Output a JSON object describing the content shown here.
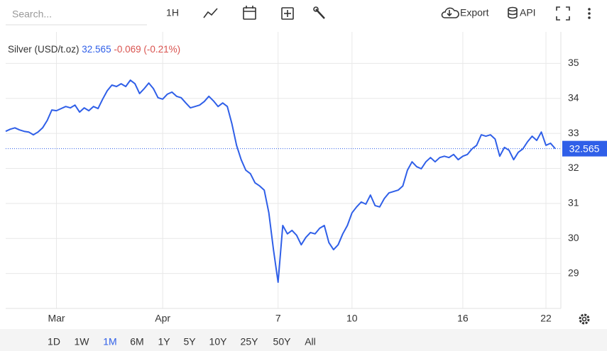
{
  "toolbar": {
    "search_placeholder": "Search...",
    "interval": "1H",
    "export": "Export",
    "api": "API"
  },
  "chart_data": {
    "type": "line",
    "title": "Silver (USD/t.oz)",
    "change": -0.069,
    "change_percent": {
      "value": -0.21,
      "label": "(-0.21%)"
    },
    "categories": [
      null,
      null,
      null,
      null,
      null,
      null,
      null,
      null,
      null,
      null,
      null,
      "Mar",
      null,
      null,
      null,
      null,
      null,
      null,
      null,
      null,
      null,
      null,
      null,
      null,
      null,
      null,
      null,
      null,
      null,
      null,
      null,
      null,
      null,
      null,
      "Apr",
      null,
      null,
      null,
      null,
      null,
      null,
      null,
      null,
      null,
      null,
      null,
      null,
      null,
      null,
      null,
      null,
      null,
      null,
      null,
      null,
      null,
      null,
      null,
      null,
      "7",
      null,
      null,
      null,
      null,
      null,
      null,
      null,
      null,
      null,
      null,
      null,
      null,
      null,
      null,
      null,
      "10",
      null,
      null,
      null,
      null,
      null,
      null,
      null,
      null,
      null,
      null,
      null,
      null,
      null,
      null,
      null,
      null,
      null,
      null,
      null,
      null,
      null,
      null,
      null,
      "16",
      null,
      null,
      null,
      null,
      null,
      null,
      null,
      null,
      null,
      null,
      null,
      null,
      null,
      null,
      null,
      null,
      null,
      "22",
      null,
      null
    ],
    "series": [
      {
        "name": "Silver",
        "color": "#2f5fe8",
        "values": [
          33.06,
          33.12,
          33.16,
          33.1,
          33.06,
          33.04,
          32.96,
          33.04,
          33.16,
          33.37,
          33.67,
          33.65,
          33.71,
          33.77,
          33.73,
          33.81,
          33.61,
          33.73,
          33.65,
          33.77,
          33.71,
          33.98,
          34.22,
          34.38,
          34.34,
          34.42,
          34.34,
          34.52,
          34.42,
          34.14,
          34.28,
          34.44,
          34.28,
          34.02,
          33.98,
          34.12,
          34.18,
          34.06,
          34.02,
          33.87,
          33.73,
          33.77,
          33.81,
          33.91,
          34.06,
          33.93,
          33.77,
          33.87,
          33.77,
          33.27,
          32.66,
          32.25,
          31.95,
          31.85,
          31.59,
          31.5,
          31.38,
          30.73,
          29.68,
          28.75,
          30.37,
          30.13,
          30.23,
          30.09,
          29.82,
          30.03,
          30.17,
          30.13,
          30.29,
          30.37,
          29.88,
          29.68,
          29.82,
          30.13,
          30.37,
          30.73,
          30.9,
          31.04,
          30.98,
          31.24,
          30.94,
          30.9,
          31.14,
          31.3,
          31.34,
          31.38,
          31.5,
          31.95,
          32.19,
          32.05,
          31.99,
          32.19,
          32.31,
          32.19,
          32.31,
          32.35,
          32.31,
          32.4,
          32.25,
          32.35,
          32.4,
          32.56,
          32.66,
          32.96,
          32.92,
          32.96,
          32.84,
          32.35,
          32.6,
          32.52,
          32.25,
          32.46,
          32.56,
          32.76,
          32.92,
          32.8,
          33.04,
          32.66,
          32.72,
          32.565
        ]
      }
    ],
    "ylim": [
      28,
      35.9
    ],
    "yticks": [
      29,
      30,
      31,
      32,
      33,
      34,
      35
    ],
    "grid": true
  },
  "ranges": {
    "options": [
      "1D",
      "1W",
      "1M",
      "6M",
      "1Y",
      "5Y",
      "10Y",
      "25Y",
      "50Y",
      "All"
    ],
    "selected": "1M"
  }
}
